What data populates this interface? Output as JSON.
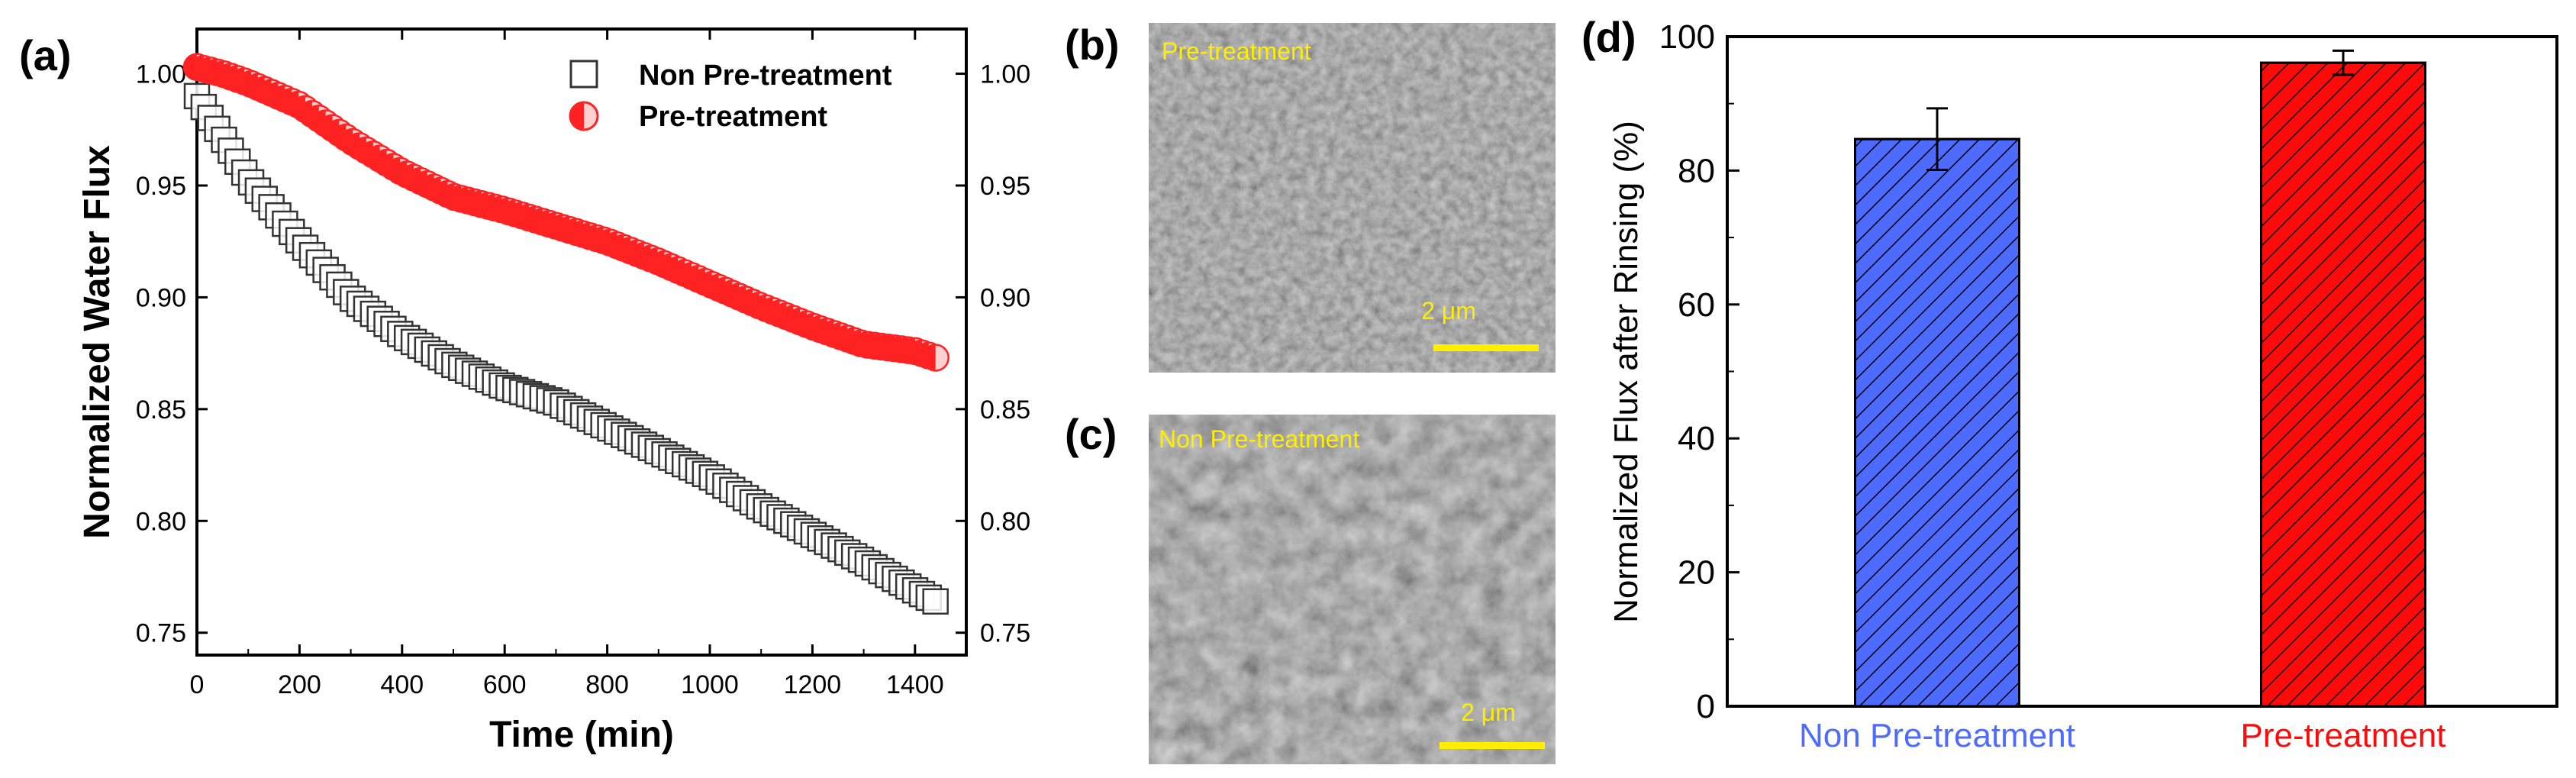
{
  "colors": {
    "pre": "#ff2222",
    "pre_fill": "#ffd0d0",
    "non": "#333333",
    "bar_non": "#4d6bff",
    "bar_pre": "#ff0a0a",
    "sem_bg": "#555555",
    "scale": "#ffee00"
  },
  "panel_a": {
    "label": "(a)",
    "legend": [
      {
        "name": "Non Pre-treatment",
        "marker": "open-square"
      },
      {
        "name": "Pre-treatment",
        "marker": "half-filled-circle"
      }
    ]
  },
  "panel_b": {
    "label": "(b)",
    "caption": "Pre-treatment",
    "scale_bar": "2 μm"
  },
  "panel_c": {
    "label": "(c)",
    "caption": "Non Pre-treatment",
    "scale_bar": "2 μm"
  },
  "panel_d": {
    "label": "(d)"
  },
  "chart_data": [
    {
      "type": "scatter",
      "title": "",
      "xlabel": "Time (min)",
      "ylabel": "Normalized Water Flux",
      "xlim": [
        0,
        1500
      ],
      "ylim": [
        0.74,
        1.02
      ],
      "xticks": [
        "0",
        "200",
        "400",
        "600",
        "800",
        "1000",
        "1200",
        "1400"
      ],
      "yticks": [
        "0.75",
        "0.80",
        "0.85",
        "0.90",
        "0.95",
        "1.00"
      ],
      "legend_position": "top-right",
      "series": [
        {
          "name": "Non Pre-treatment",
          "x": [
            0,
            100,
            200,
            300,
            400,
            500,
            600,
            700,
            800,
            900,
            1000,
            1100,
            1200,
            1300,
            1400,
            1440
          ],
          "y": [
            0.99,
            0.953,
            0.925,
            0.9,
            0.883,
            0.87,
            0.86,
            0.853,
            0.842,
            0.831,
            0.82,
            0.806,
            0.794,
            0.782,
            0.769,
            0.764
          ]
        },
        {
          "name": "Pre-treatment",
          "x": [
            0,
            50,
            100,
            200,
            300,
            400,
            500,
            600,
            700,
            800,
            900,
            1000,
            1100,
            1200,
            1300,
            1400,
            1440
          ],
          "y": [
            1.003,
            1.0,
            0.996,
            0.986,
            0.97,
            0.956,
            0.945,
            0.939,
            0.932,
            0.925,
            0.916,
            0.906,
            0.896,
            0.887,
            0.879,
            0.876,
            0.873
          ]
        }
      ]
    },
    {
      "type": "bar",
      "title": "",
      "xlabel": "",
      "ylabel": "Normalized Flux after Rinsing (%)",
      "ylim": [
        0,
        100
      ],
      "yticks": [
        "0",
        "20",
        "40",
        "60",
        "80",
        "100"
      ],
      "categories": [
        "Non Pre-treatment",
        "Pre-treatment"
      ],
      "values": [
        84.7,
        96.1
      ],
      "errors": [
        4.6,
        1.8
      ]
    }
  ]
}
